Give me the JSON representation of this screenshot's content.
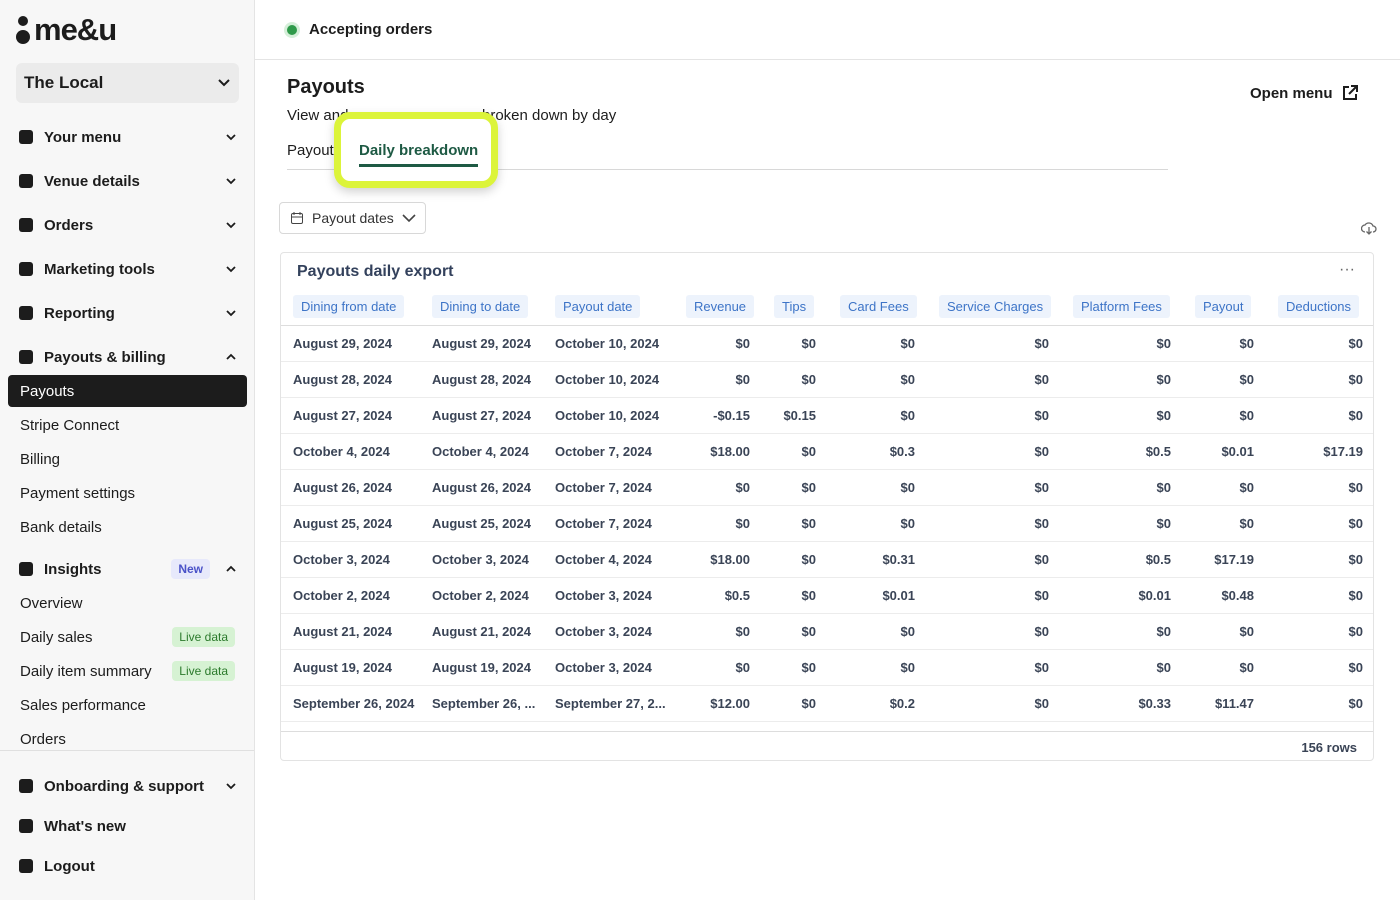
{
  "logo": "me&u",
  "sidebar": {
    "venue": "The Local",
    "nav": [
      {
        "label": "Your menu"
      },
      {
        "label": "Venue details"
      },
      {
        "label": "Orders"
      },
      {
        "label": "Marketing tools"
      },
      {
        "label": "Reporting"
      },
      {
        "label": "Payouts & billing",
        "expanded": true,
        "items": [
          {
            "label": "Payouts",
            "active": true
          },
          {
            "label": "Stripe Connect"
          },
          {
            "label": "Billing"
          },
          {
            "label": "Payment settings"
          },
          {
            "label": "Bank details"
          }
        ]
      },
      {
        "label": "Insights",
        "badge": "New",
        "expanded": true,
        "items": [
          {
            "label": "Overview"
          },
          {
            "label": "Daily sales",
            "badge": "Live data"
          },
          {
            "label": "Daily item summary",
            "badge": "Live data"
          },
          {
            "label": "Sales performance"
          },
          {
            "label": "Orders"
          }
        ]
      }
    ],
    "footer": [
      {
        "label": "Onboarding & support"
      },
      {
        "label": "What's new"
      },
      {
        "label": "Logout"
      }
    ]
  },
  "header": {
    "status": "Accepting orders"
  },
  "page": {
    "title": "Payouts",
    "subtitle_start": "View and",
    "subtitle_end": "broken down by day",
    "tabs": [
      "Payout",
      "Daily breakdown"
    ],
    "open_menu": "Open menu",
    "filter": "Payout dates"
  },
  "table": {
    "title": "Payouts daily export",
    "columns": [
      "Dining from date",
      "Dining to date",
      "Payout date",
      "Revenue",
      "Tips",
      "Card Fees",
      "Service Charges",
      "Platform Fees",
      "Payout",
      "Deductions"
    ],
    "rows": [
      [
        "August 29, 2024",
        "August 29, 2024",
        "October 10, 2024",
        "$0",
        "$0",
        "$0",
        "$0",
        "$0",
        "$0",
        "$0"
      ],
      [
        "August 28, 2024",
        "August 28, 2024",
        "October 10, 2024",
        "$0",
        "$0",
        "$0",
        "$0",
        "$0",
        "$0",
        "$0"
      ],
      [
        "August 27, 2024",
        "August 27, 2024",
        "October 10, 2024",
        "-$0.15",
        "$0.15",
        "$0",
        "$0",
        "$0",
        "$0",
        "$0"
      ],
      [
        "October 4, 2024",
        "October 4, 2024",
        "October 7, 2024",
        "$18.00",
        "$0",
        "$0.3",
        "$0",
        "$0.5",
        "$0.01",
        "$17.19"
      ],
      [
        "August 26, 2024",
        "August 26, 2024",
        "October 7, 2024",
        "$0",
        "$0",
        "$0",
        "$0",
        "$0",
        "$0",
        "$0"
      ],
      [
        "August 25, 2024",
        "August 25, 2024",
        "October 7, 2024",
        "$0",
        "$0",
        "$0",
        "$0",
        "$0",
        "$0",
        "$0"
      ],
      [
        "October 3, 2024",
        "October 3, 2024",
        "October 4, 2024",
        "$18.00",
        "$0",
        "$0.31",
        "$0",
        "$0.5",
        "$17.19",
        "$0"
      ],
      [
        "October 2, 2024",
        "October 2, 2024",
        "October 3, 2024",
        "$0.5",
        "$0",
        "$0.01",
        "$0",
        "$0.01",
        "$0.48",
        "$0"
      ],
      [
        "August 21, 2024",
        "August 21, 2024",
        "October 3, 2024",
        "$0",
        "$0",
        "$0",
        "$0",
        "$0",
        "$0",
        "$0"
      ],
      [
        "August 19, 2024",
        "August 19, 2024",
        "October 3, 2024",
        "$0",
        "$0",
        "$0",
        "$0",
        "$0",
        "$0",
        "$0"
      ],
      [
        "September 26, 2024",
        "September 26, ...",
        "September 27, 2...",
        "$12.00",
        "$0",
        "$0.2",
        "$0",
        "$0.33",
        "$11.47",
        "$0"
      ]
    ],
    "footer": "156 rows"
  }
}
